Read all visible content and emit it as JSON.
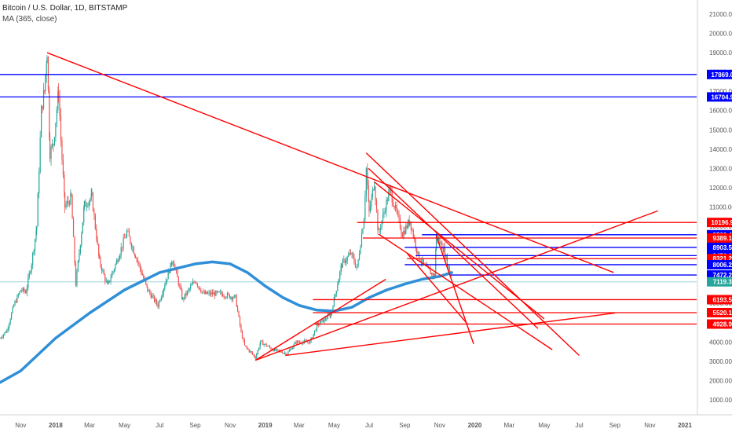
{
  "header": {
    "symbol_title": "Bitcoin / U.S. Dollar, 1D, BITSTAMP",
    "indicator": "MA (365, close)"
  },
  "colors": {
    "background": "#ffffff",
    "candle_up": "#26a69a",
    "candle_down": "#ef5350",
    "ma_line": "#2f8fd8",
    "trend_red": "#ff0000",
    "level_blue": "#0000ff",
    "last_price_badge": "#26a69a",
    "current_line": "#9ad3da"
  },
  "chart_data": {
    "type": "line",
    "title": "Bitcoin / U.S. Dollar, 1D, BITSTAMP",
    "ylim": [
      0,
      22000
    ],
    "y_ticks": [
      1000,
      2000,
      3000,
      4000,
      5000,
      6000,
      7000,
      8000,
      9000,
      10000,
      11000,
      12000,
      13000,
      14000,
      15000,
      16000,
      17000,
      18000,
      19000,
      20000,
      21000
    ],
    "x_ticks": [
      {
        "label": "Nov",
        "date": "2017-11-01"
      },
      {
        "label": "2018",
        "date": "2018-01-01"
      },
      {
        "label": "Mar",
        "date": "2018-03-01"
      },
      {
        "label": "May",
        "date": "2018-05-01"
      },
      {
        "label": "Jul",
        "date": "2018-07-01"
      },
      {
        "label": "Sep",
        "date": "2018-09-01"
      },
      {
        "label": "Nov",
        "date": "2018-11-01"
      },
      {
        "label": "2019",
        "date": "2019-01-01"
      },
      {
        "label": "Mar",
        "date": "2019-03-01"
      },
      {
        "label": "May",
        "date": "2019-05-01"
      },
      {
        "label": "Jul",
        "date": "2019-07-01"
      },
      {
        "label": "Sep",
        "date": "2019-09-01"
      },
      {
        "label": "Nov",
        "date": "2019-11-01"
      },
      {
        "label": "2020",
        "date": "2020-01-01"
      },
      {
        "label": "Mar",
        "date": "2020-03-01"
      },
      {
        "label": "May",
        "date": "2020-05-01"
      },
      {
        "label": "Jul",
        "date": "2020-07-01"
      },
      {
        "label": "Sep",
        "date": "2020-09-01"
      },
      {
        "label": "Nov",
        "date": "2020-11-01"
      },
      {
        "label": "2021",
        "date": "2021-01-01"
      }
    ],
    "price_series": {
      "name": "Bitcoin / U.S. Dollar",
      "points": [
        [
          "2017-09-26",
          4200
        ],
        [
          "2017-10-08",
          4600
        ],
        [
          "2017-10-20",
          5900
        ],
        [
          "2017-11-01",
          6700
        ],
        [
          "2017-11-10",
          6600
        ],
        [
          "2017-11-20",
          8100
        ],
        [
          "2017-11-29",
          10000
        ],
        [
          "2017-12-07",
          16000
        ],
        [
          "2017-12-12",
          17000
        ],
        [
          "2017-12-17",
          19100
        ],
        [
          "2017-12-22",
          13800
        ],
        [
          "2017-12-28",
          14300
        ],
        [
          "2018-01-06",
          17000
        ],
        [
          "2018-01-10",
          14500
        ],
        [
          "2018-01-17",
          11000
        ],
        [
          "2018-01-28",
          11500
        ],
        [
          "2018-02-05",
          7000
        ],
        [
          "2018-02-20",
          11100
        ],
        [
          "2018-03-05",
          11500
        ],
        [
          "2018-03-18",
          8200
        ],
        [
          "2018-04-01",
          6900
        ],
        [
          "2018-04-15",
          8000
        ],
        [
          "2018-05-05",
          9700
        ],
        [
          "2018-05-20",
          8500
        ],
        [
          "2018-06-10",
          6700
        ],
        [
          "2018-06-28",
          5900
        ],
        [
          "2018-07-24",
          8300
        ],
        [
          "2018-08-10",
          6200
        ],
        [
          "2018-09-01",
          7200
        ],
        [
          "2018-09-15",
          6500
        ],
        [
          "2018-10-15",
          6500
        ],
        [
          "2018-11-10",
          6300
        ],
        [
          "2018-11-20",
          4500
        ],
        [
          "2018-11-26",
          3800
        ],
        [
          "2018-12-15",
          3200
        ],
        [
          "2018-12-24",
          4000
        ],
        [
          "2019-01-15",
          3600
        ],
        [
          "2019-02-08",
          3400
        ],
        [
          "2019-02-24",
          4000
        ],
        [
          "2019-03-20",
          4000
        ],
        [
          "2019-04-02",
          4900
        ],
        [
          "2019-04-25",
          5400
        ],
        [
          "2019-05-14",
          8000
        ],
        [
          "2019-05-30",
          8600
        ],
        [
          "2019-06-10",
          7800
        ],
        [
          "2019-06-22",
          10500
        ],
        [
          "2019-06-26",
          13000
        ],
        [
          "2019-07-01",
          10700
        ],
        [
          "2019-07-10",
          12300
        ],
        [
          "2019-07-17",
          9600
        ],
        [
          "2019-08-06",
          11900
        ],
        [
          "2019-08-28",
          9600
        ],
        [
          "2019-09-10",
          10300
        ],
        [
          "2019-09-24",
          8500
        ],
        [
          "2019-10-06",
          7900
        ],
        [
          "2019-10-23",
          7400
        ],
        [
          "2019-10-26",
          9500
        ],
        [
          "2019-11-08",
          8800
        ],
        [
          "2019-11-22",
          7200
        ]
      ]
    },
    "moving_average": {
      "name": "MA (365, close)",
      "points": [
        [
          "2017-09-26",
          1900
        ],
        [
          "2017-11-01",
          2500
        ],
        [
          "2018-01-01",
          4200
        ],
        [
          "2018-03-01",
          5500
        ],
        [
          "2018-05-01",
          6700
        ],
        [
          "2018-07-01",
          7600
        ],
        [
          "2018-09-01",
          8050
        ],
        [
          "2018-10-01",
          8150
        ],
        [
          "2018-11-01",
          8050
        ],
        [
          "2018-12-01",
          7600
        ],
        [
          "2019-01-01",
          6900
        ],
        [
          "2019-02-01",
          6300
        ],
        [
          "2019-03-01",
          5900
        ],
        [
          "2019-04-01",
          5650
        ],
        [
          "2019-05-01",
          5600
        ],
        [
          "2019-06-01",
          5800
        ],
        [
          "2019-07-01",
          6300
        ],
        [
          "2019-08-01",
          6700
        ],
        [
          "2019-09-01",
          7000
        ],
        [
          "2019-10-01",
          7250
        ],
        [
          "2019-11-01",
          7400
        ],
        [
          "2019-11-22",
          7600
        ]
      ]
    },
    "horizontal_levels": [
      {
        "label": "17869.06",
        "value": 17869.06,
        "color": "blue",
        "start": "2017-09-26"
      },
      {
        "label": "16704.93",
        "value": 16704.93,
        "color": "blue",
        "start": "2017-09-26"
      },
      {
        "label": "10196.96",
        "value": 10196.96,
        "color": "red",
        "start": "2019-06-10"
      },
      {
        "label": "9560.49",
        "value": 9560.49,
        "color": "blue",
        "start": "2019-10-01"
      },
      {
        "label": "9389.15",
        "value": 9389.15,
        "color": "red",
        "start": "2019-06-20"
      },
      {
        "label": "8903.53",
        "value": 8903.53,
        "color": "blue",
        "start": "2019-09-01"
      },
      {
        "label": "8476.64",
        "value": 8476.64,
        "color": "blue",
        "start": "2019-09-20"
      },
      {
        "label": "8321.21",
        "value": 8321.21,
        "color": "red",
        "start": "2019-09-05"
      },
      {
        "label": "8006.23",
        "value": 8006.23,
        "color": "blue",
        "start": "2019-09-01"
      },
      {
        "label": "7472.25",
        "value": 7472.25,
        "color": "blue",
        "start": "2019-11-20"
      },
      {
        "label": "6193.57",
        "value": 6193.57,
        "color": "red",
        "start": "2019-03-25"
      },
      {
        "label": "5520.18",
        "value": 5520.18,
        "color": "red",
        "start": "2019-03-25"
      },
      {
        "label": "4928.92",
        "value": 4928.92,
        "color": "red",
        "start": "2019-03-25"
      }
    ],
    "last_price": {
      "label": "7119.37",
      "value": 7119.37
    },
    "trend_lines": [
      {
        "from": [
          "2017-12-17",
          19000
        ],
        "to": [
          "2020-08-30",
          7600
        ]
      },
      {
        "from": [
          "2018-12-15",
          3050
        ],
        "to": [
          "2020-11-15",
          10800
        ]
      },
      {
        "from": [
          "2018-12-15",
          3050
        ],
        "to": [
          "2019-07-30",
          7250
        ]
      },
      {
        "from": [
          "2019-02-05",
          3300
        ],
        "to": [
          "2020-09-01",
          5500
        ]
      },
      {
        "from": [
          "2019-06-26",
          13800
        ],
        "to": [
          "2020-07-01",
          3300
        ]
      },
      {
        "from": [
          "2019-06-30",
          13000
        ],
        "to": [
          "2020-04-20",
          4700
        ]
      },
      {
        "from": [
          "2019-07-10",
          12300
        ],
        "to": [
          "2020-05-01",
          5200
        ]
      },
      {
        "from": [
          "2019-07-17",
          9600
        ],
        "to": [
          "2020-05-15",
          3600
        ]
      },
      {
        "from": [
          "2019-09-05",
          8600
        ],
        "to": [
          "2019-12-20",
          4900
        ]
      },
      {
        "from": [
          "2019-10-26",
          9500
        ],
        "to": [
          "2019-12-30",
          3900
        ]
      }
    ]
  }
}
